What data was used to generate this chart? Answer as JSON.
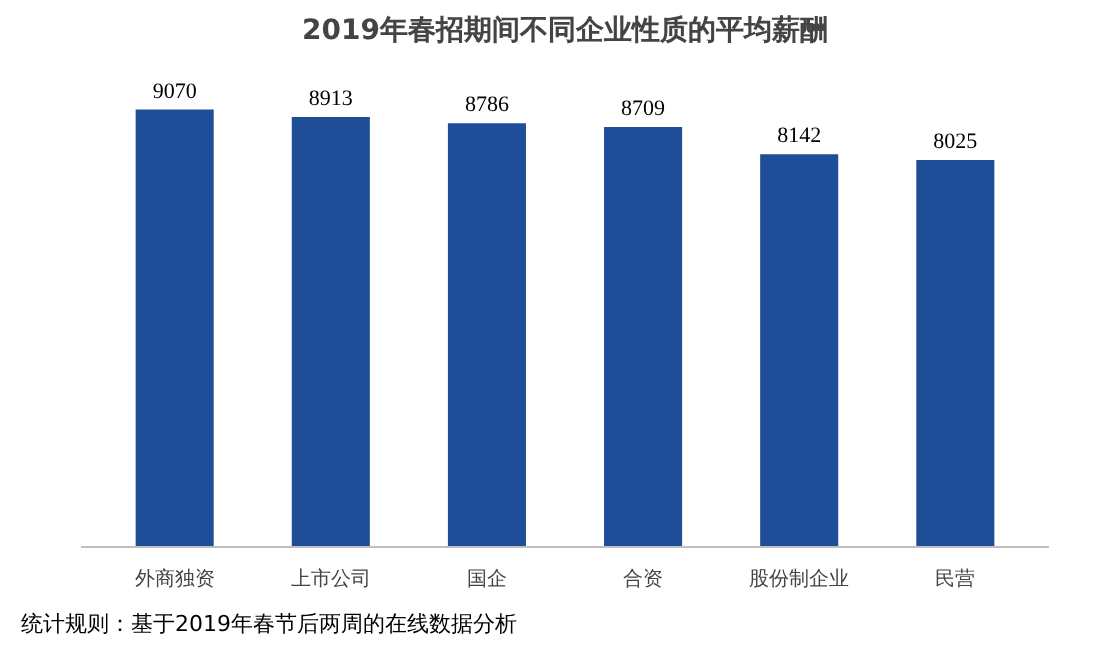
{
  "chart_data": {
    "type": "bar",
    "title": "2019年春招期间不同企业性质的平均薪酬",
    "categories": [
      "外商独资",
      "上市公司",
      "国企",
      "合资",
      "股份制企业",
      "民营"
    ],
    "values": [
      9070,
      8913,
      8786,
      8709,
      8142,
      8025
    ],
    "color": "#1f4e99",
    "data_labels": true,
    "tick_labels": "x",
    "annotations": [
      "统计规则：基于2019年春节后两周的在线数据分析"
    ]
  }
}
